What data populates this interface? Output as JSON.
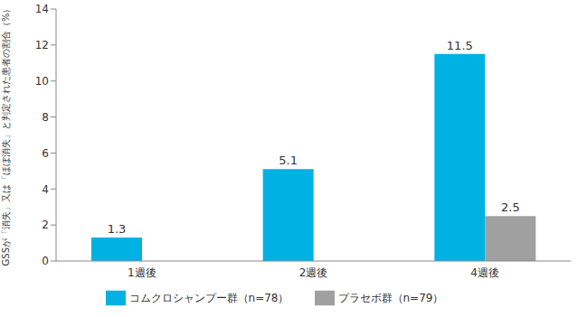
{
  "chart_data": {
    "type": "bar",
    "y_label": "GSSが「消失」又は「ほぼ消失」と判定された患者の割合（%）",
    "categories": [
      "1週後",
      "2週後",
      "4週後"
    ],
    "series": [
      {
        "name": "コムクロシャンプー群（n=78）",
        "color": "#00b1e4",
        "values": [
          1.3,
          5.1,
          11.5
        ]
      },
      {
        "name": "プラセボ群（n=79）",
        "color": "#a0a0a0",
        "values": [
          0,
          0,
          2.5
        ]
      }
    ],
    "ylim": [
      0,
      14
    ],
    "yticks": [
      0,
      2,
      4,
      6,
      8,
      10,
      12,
      14
    ],
    "grid": false,
    "data_labels": true,
    "legend": "bottom"
  }
}
